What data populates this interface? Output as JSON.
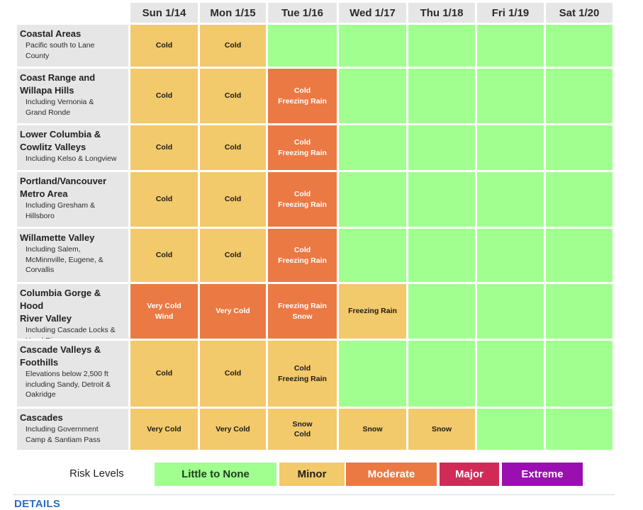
{
  "days": [
    "Sun 1/14",
    "Mon 1/15",
    "Tue 1/16",
    "Wed 1/17",
    "Thu 1/18",
    "Fri 1/19",
    "Sat 1/20"
  ],
  "levels": {
    "none": {
      "label": "Little to None",
      "color": "#a0ff8f"
    },
    "minor": {
      "label": "Minor",
      "color": "#f2c96b"
    },
    "moderate": {
      "label": "Moderate",
      "color": "#eb7944"
    },
    "major": {
      "label": "Major",
      "color": "#d12a58"
    },
    "extreme": {
      "label": "Extreme",
      "color": "#9a0fb0"
    }
  },
  "rows": [
    {
      "name_lines": [
        "Coastal Areas"
      ],
      "sub_lines": [
        "Pacific south to Lane",
        "County"
      ],
      "cells": [
        {
          "level": "minor",
          "lines": [
            "Cold"
          ]
        },
        {
          "level": "minor",
          "lines": [
            "Cold"
          ]
        },
        {
          "level": "none",
          "lines": []
        },
        {
          "level": "none",
          "lines": []
        },
        {
          "level": "none",
          "lines": []
        },
        {
          "level": "none",
          "lines": []
        },
        {
          "level": "none",
          "lines": []
        }
      ]
    },
    {
      "name_lines": [
        "Coast Range and",
        "Willapa Hills"
      ],
      "sub_lines": [
        "Including Vernonia &",
        "Grand Ronde"
      ],
      "cells": [
        {
          "level": "minor",
          "lines": [
            "Cold"
          ]
        },
        {
          "level": "minor",
          "lines": [
            "Cold"
          ]
        },
        {
          "level": "moderate",
          "lines": [
            "Cold",
            "Freezing Rain"
          ]
        },
        {
          "level": "none",
          "lines": []
        },
        {
          "level": "none",
          "lines": []
        },
        {
          "level": "none",
          "lines": []
        },
        {
          "level": "none",
          "lines": []
        }
      ]
    },
    {
      "name_lines": [
        "Lower Columbia &",
        "Cowlitz Valleys"
      ],
      "sub_lines": [
        "Including Kelso & Longview"
      ],
      "cells": [
        {
          "level": "minor",
          "lines": [
            "Cold"
          ]
        },
        {
          "level": "minor",
          "lines": [
            "Cold"
          ]
        },
        {
          "level": "moderate",
          "lines": [
            "Cold",
            "Freezing Rain"
          ]
        },
        {
          "level": "none",
          "lines": []
        },
        {
          "level": "none",
          "lines": []
        },
        {
          "level": "none",
          "lines": []
        },
        {
          "level": "none",
          "lines": []
        }
      ]
    },
    {
      "name_lines": [
        "Portland/Vancouver",
        "Metro Area"
      ],
      "sub_lines": [
        "Including Gresham &",
        "Hillsboro"
      ],
      "cells": [
        {
          "level": "minor",
          "lines": [
            "Cold"
          ]
        },
        {
          "level": "minor",
          "lines": [
            "Cold"
          ]
        },
        {
          "level": "moderate",
          "lines": [
            "Cold",
            "Freezing Rain"
          ]
        },
        {
          "level": "none",
          "lines": []
        },
        {
          "level": "none",
          "lines": []
        },
        {
          "level": "none",
          "lines": []
        },
        {
          "level": "none",
          "lines": []
        }
      ]
    },
    {
      "name_lines": [
        "Willamette Valley"
      ],
      "sub_lines": [
        "Including Salem,",
        "McMinnville, Eugene, &",
        "Corvallis"
      ],
      "cells": [
        {
          "level": "minor",
          "lines": [
            "Cold"
          ]
        },
        {
          "level": "minor",
          "lines": [
            "Cold"
          ]
        },
        {
          "level": "moderate",
          "lines": [
            "Cold",
            "Freezing Rain"
          ]
        },
        {
          "level": "none",
          "lines": []
        },
        {
          "level": "none",
          "lines": []
        },
        {
          "level": "none",
          "lines": []
        },
        {
          "level": "none",
          "lines": []
        }
      ]
    },
    {
      "name_lines": [
        "Columbia Gorge & Hood",
        "River Valley"
      ],
      "sub_lines": [
        "Including Cascade Locks &",
        "Hood River"
      ],
      "cells": [
        {
          "level": "moderate",
          "lines": [
            "Very Cold",
            "Wind"
          ]
        },
        {
          "level": "moderate",
          "lines": [
            "Very Cold"
          ]
        },
        {
          "level": "moderate",
          "lines": [
            "Freezing Rain",
            "Snow"
          ]
        },
        {
          "level": "minor",
          "lines": [
            "Freezing Rain"
          ]
        },
        {
          "level": "none",
          "lines": []
        },
        {
          "level": "none",
          "lines": []
        },
        {
          "level": "none",
          "lines": []
        }
      ]
    },
    {
      "name_lines": [
        "Cascade Valleys &",
        "Foothills"
      ],
      "sub_lines": [
        "Elevations below 2,500 ft",
        "including Sandy, Detroit &",
        "Oakridge"
      ],
      "cells": [
        {
          "level": "minor",
          "lines": [
            "Cold"
          ]
        },
        {
          "level": "minor",
          "lines": [
            "Cold"
          ]
        },
        {
          "level": "minor",
          "lines": [
            "Cold",
            "Freezing Rain"
          ]
        },
        {
          "level": "none",
          "lines": []
        },
        {
          "level": "none",
          "lines": []
        },
        {
          "level": "none",
          "lines": []
        },
        {
          "level": "none",
          "lines": []
        }
      ]
    },
    {
      "name_lines": [
        "Cascades"
      ],
      "sub_lines": [
        "Including Government",
        "Camp & Santiam Pass"
      ],
      "cells": [
        {
          "level": "minor",
          "lines": [
            "Very Cold"
          ]
        },
        {
          "level": "minor",
          "lines": [
            "Very Cold"
          ]
        },
        {
          "level": "minor",
          "lines": [
            "Snow",
            "Cold"
          ]
        },
        {
          "level": "minor",
          "lines": [
            "Snow"
          ]
        },
        {
          "level": "minor",
          "lines": [
            "Snow"
          ]
        },
        {
          "level": "none",
          "lines": []
        },
        {
          "level": "none",
          "lines": []
        }
      ]
    }
  ],
  "legend": {
    "title": "Risk Levels"
  },
  "details": {
    "heading": "DETAILS"
  }
}
